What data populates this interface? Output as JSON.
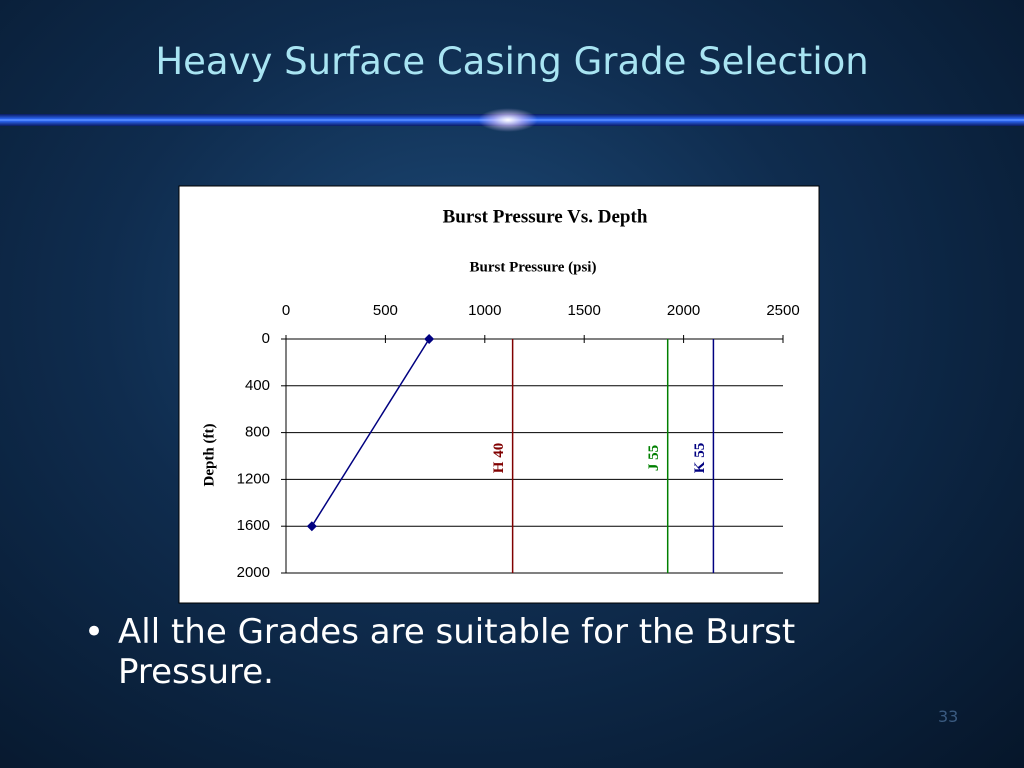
{
  "slide": {
    "title": "Heavy Surface Casing Grade Selection",
    "bullet": "All the Grades are suitable for the Burst Pressure.",
    "page_number": "33"
  },
  "chart_data": {
    "type": "line",
    "title": "Burst Pressure Vs. Depth",
    "x_label": "Burst Pressure (psi)",
    "y_label": "Depth (ft)",
    "x_axis_position": "top",
    "xlim": [
      0,
      2500
    ],
    "xticks": [
      0,
      500,
      1000,
      1500,
      2000,
      2500
    ],
    "ylim": [
      2000,
      0
    ],
    "yticks": [
      0,
      400,
      800,
      1200,
      1600,
      2000
    ],
    "grid": true,
    "series": [
      {
        "color": "#000080",
        "x": [
          720,
          130
        ],
        "values": [
          0,
          1600
        ]
      }
    ],
    "reference_lines": [
      {
        "label": "H 40",
        "value": 1140,
        "color": "#800000"
      },
      {
        "label": "J 55",
        "value": 1920,
        "color": "#008000"
      },
      {
        "label": "K 55",
        "value": 2150,
        "color": "#000080"
      }
    ]
  }
}
